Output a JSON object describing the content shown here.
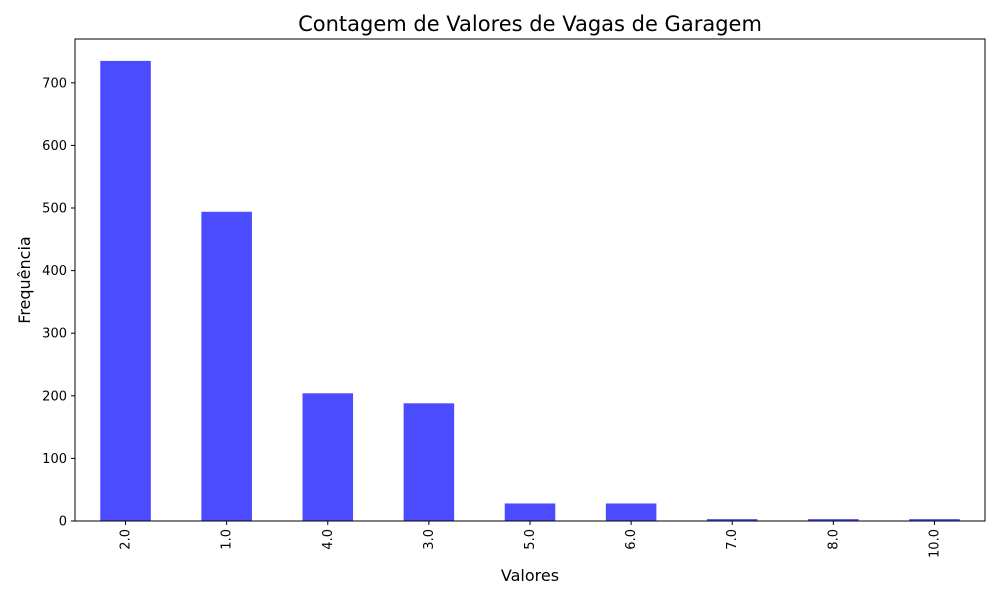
{
  "chart_data": {
    "type": "bar",
    "title": "Contagem de Valores de Vagas de Garagem",
    "xlabel": "Valores",
    "ylabel": "Frequência",
    "categories": [
      "2.0",
      "1.0",
      "4.0",
      "3.0",
      "5.0",
      "6.0",
      "7.0",
      "8.0",
      "10.0"
    ],
    "values": [
      735,
      494,
      204,
      188,
      28,
      28,
      3,
      3,
      3
    ],
    "ylim": [
      0,
      770
    ],
    "yticks": [
      "0",
      "100",
      "200",
      "300",
      "400",
      "500",
      "600",
      "700"
    ],
    "grid": false,
    "legend": "none",
    "bar_color": "#4b4bff"
  }
}
